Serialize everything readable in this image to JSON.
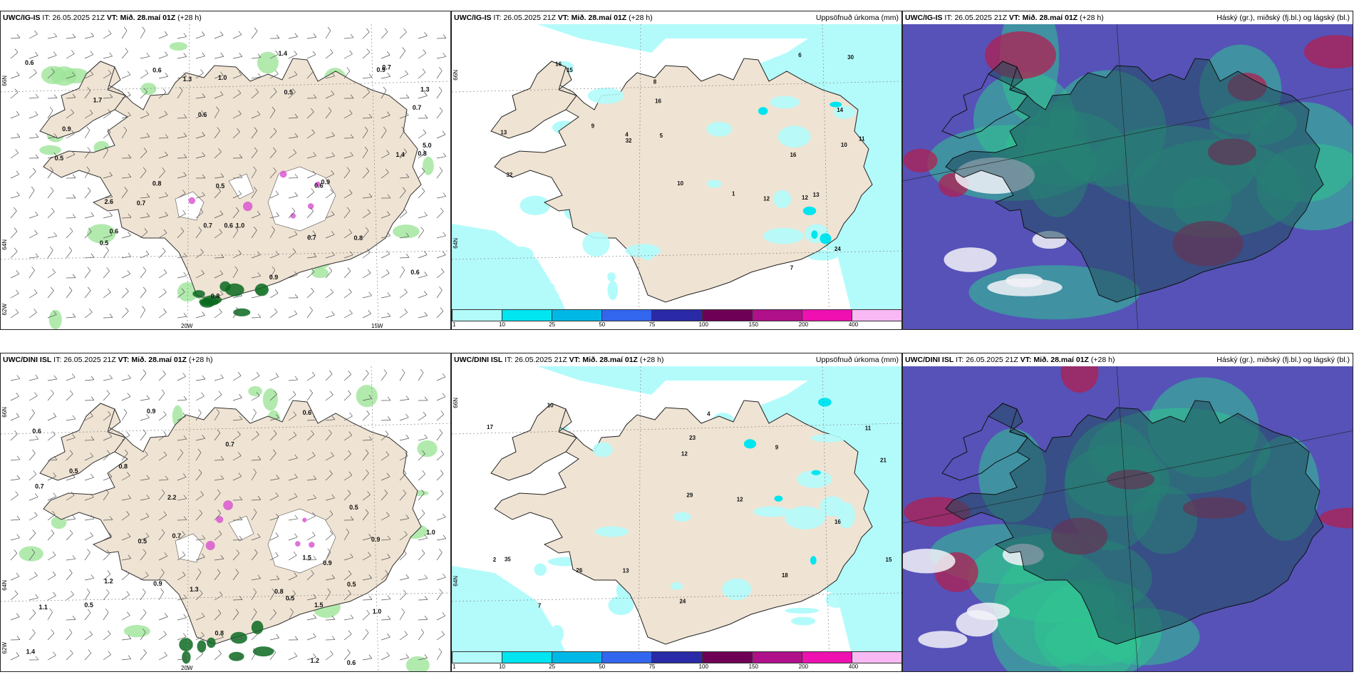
{
  "panels": [
    {
      "id": "p1",
      "type": "wind",
      "model": "UWC/IG-IS",
      "it_label": "IT:",
      "it": "26.05.2025 21Z",
      "vt_label": "VT:",
      "vt": "Mið. 28.maí 01Z",
      "lead": "(+28 h)",
      "right_title": "",
      "axis": {
        "lat_top": "66N",
        "lat_mid": "64N",
        "lat_bot": "62W",
        "lon_left": "20W",
        "lon_right": "15W"
      },
      "values": [
        "0.5",
        "0.6",
        "0.9",
        "0.9",
        "0.8",
        "0.6",
        "1.0",
        "0.6",
        "0.5",
        "0.7",
        "0.8",
        "1.3",
        "1.0",
        "0.5",
        "0.7",
        "0.7",
        "1.3",
        "0.8",
        "1.7",
        "1.4",
        "0.9",
        "0.6",
        "0.6",
        "0.7",
        "0.7",
        "1.4",
        "0.5",
        "0.6",
        "2.6",
        "0.9",
        "0.8",
        "0.6",
        "5.0"
      ]
    },
    {
      "id": "p2",
      "type": "precip",
      "model": "UWC/IG-IS",
      "it_label": "IT:",
      "it": "26.05.2025 21Z",
      "vt_label": "VT:",
      "vt": "Mið. 28.maí 01Z",
      "lead": "(+28 h)",
      "right_title": "Uppsöfnuð úrkoma (mm)",
      "axis": {
        "lat_top": "66N",
        "lat_mid": "64N"
      },
      "values": [
        "1",
        "4",
        "24",
        "6",
        "11",
        "8",
        "10",
        "13",
        "16",
        "32",
        "32",
        "16",
        "14",
        "30",
        "13",
        "15",
        "7",
        "12",
        "5",
        "9",
        "16",
        "10",
        "12"
      ]
    },
    {
      "id": "p3",
      "type": "cloud",
      "model": "UWC/IG-IS",
      "it_label": "IT:",
      "it": "26.05.2025 21Z",
      "vt_label": "VT:",
      "vt": "Mið. 28.maí 01Z",
      "lead": "(+28 h)",
      "right_title": "Háský (gr.), miðský (fj.bl.) og lágský (bl.)"
    },
    {
      "id": "p4",
      "type": "wind",
      "model": "UWC/DINI ISL",
      "it_label": "IT:",
      "it": "26.05.2025 21Z",
      "vt_label": "VT:",
      "vt": "Mið. 28.maí 01Z",
      "lead": "(+28 h)",
      "right_title": "",
      "axis": {
        "lat_top": "66N",
        "lat_mid": "64N",
        "lat_bot": "62W",
        "lon_left": "20W"
      },
      "values": [
        "0.6",
        "1.2",
        "0.9",
        "1.0",
        "1.3",
        "0.8",
        "1.5",
        "0.7",
        "0.5",
        "0.8",
        "0.5",
        "0.9",
        "1.0",
        "0.5",
        "0.6",
        "0.5",
        "0.7",
        "1.2",
        "2.2",
        "0.9",
        "1.5",
        "0.6",
        "0.5",
        "1.1",
        "0.8",
        "0.5",
        "0.7",
        "1.4",
        "0.9"
      ]
    },
    {
      "id": "p5",
      "type": "precip",
      "model": "UWC/DINI ISL",
      "it_label": "IT:",
      "it": "26.05.2025 21Z",
      "vt_label": "VT:",
      "vt": "Mið. 28.maí 01Z",
      "lead": "(+28 h)",
      "right_title": "Uppsöfnuð úrkoma (mm)",
      "axis": {
        "lat_top": "66N",
        "lat_mid": "64N"
      },
      "values": [
        "13",
        "21",
        "35",
        "24",
        "12",
        "12",
        "29",
        "11",
        "17",
        "18",
        "26",
        "15",
        "23",
        "16",
        "9",
        "10",
        "7",
        "4",
        "2"
      ]
    },
    {
      "id": "p6",
      "type": "cloud",
      "model": "UWC/DINI ISL",
      "it_label": "IT:",
      "it": "26.05.2025 21Z",
      "vt_label": "VT:",
      "vt": "Mið. 28.maí 01Z",
      "lead": "(+28 h)",
      "right_title": "Háský (gr.), miðský (fj.bl.) og lágský (bl.)"
    }
  ],
  "colorbar": {
    "labels": [
      "1",
      "10",
      "25",
      "50",
      "75",
      "100",
      "150",
      "200",
      "400"
    ],
    "colors": [
      "#b3fbfb",
      "#00e5f0",
      "#00b8e6",
      "#3366ee",
      "#2a2aa8",
      "#6e0055",
      "#b0108a",
      "#ee10b0",
      "#f8b8f4"
    ]
  },
  "colors": {
    "land": "#efe3d3",
    "ocean": "#ffffff",
    "precip_light": "#b3fbfb",
    "wind_green": "#9fe59a",
    "wind_dark": "#0a6a20",
    "cloud_blue": "#5652b8",
    "cloud_green": "#2fc48f",
    "cloud_red": "#b02050"
  }
}
